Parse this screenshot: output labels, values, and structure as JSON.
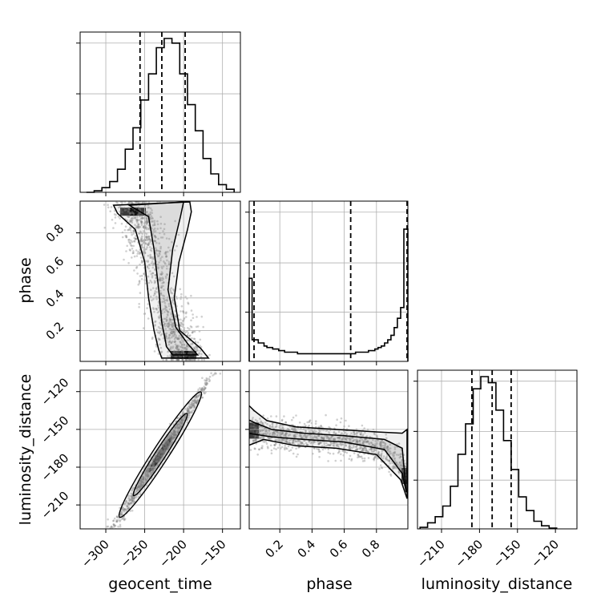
{
  "chart_data": {
    "type": "scatter",
    "title": "",
    "parameters": [
      "geocent_time",
      "phase",
      "luminosity_distance"
    ],
    "axes": {
      "geocent_time": {
        "range": [
          -333,
          -127
        ],
        "ticks": [
          -300,
          -250,
          -200,
          -150
        ],
        "tick_labels": [
          "−300",
          "−250",
          "−200",
          "−150"
        ]
      },
      "phase": {
        "range": [
          0.01,
          0.995
        ],
        "ticks": [
          0.2,
          0.4,
          0.6,
          0.8
        ],
        "tick_labels": [
          "0.2",
          "0.4",
          "0.6",
          "0.8"
        ]
      },
      "luminosity_distance": {
        "range": [
          -229,
          -103
        ],
        "ticks": [
          -210,
          -180,
          -150,
          -120
        ],
        "tick_labels": [
          "−210",
          "−180",
          "−150",
          "−120"
        ]
      }
    },
    "grid": true,
    "quantiles": {
      "geocent_time": [
        -256,
        -228,
        -198
      ],
      "phase": [
        0.04,
        0.64,
        0.99
      ],
      "luminosity_distance": [
        -186,
        -170,
        -155
      ]
    },
    "histograms": {
      "geocent_time": {
        "edges": [
          -325,
          -315,
          -305,
          -295,
          -285,
          -275,
          -265,
          -255,
          -245,
          -235,
          -225,
          -215,
          -205,
          -195,
          -185,
          -175,
          -165,
          -155,
          -145,
          -135
        ],
        "counts": [
          0,
          0.01,
          0.03,
          0.07,
          0.15,
          0.28,
          0.42,
          0.6,
          0.77,
          0.94,
          1.0,
          0.97,
          0.77,
          0.57,
          0.4,
          0.22,
          0.12,
          0.05,
          0.02
        ]
      },
      "phase": {
        "edges": [
          0.01,
          0.028,
          0.046,
          0.066,
          0.084,
          0.102,
          0.12,
          0.138,
          0.156,
          0.174,
          0.193,
          0.21,
          0.23,
          0.25,
          0.27,
          0.29,
          0.31,
          0.33,
          0.35,
          0.37,
          0.39,
          0.41,
          0.43,
          0.45,
          0.47,
          0.49,
          0.51,
          0.53,
          0.55,
          0.57,
          0.59,
          0.61,
          0.63,
          0.65,
          0.67,
          0.69,
          0.71,
          0.73,
          0.75,
          0.77,
          0.79,
          0.81,
          0.83,
          0.85,
          0.87,
          0.89,
          0.91,
          0.93,
          0.95,
          0.97,
          0.995
        ],
        "counts": [
          0.54,
          0.14,
          0.14,
          0.12,
          0.12,
          0.1,
          0.09,
          0.09,
          0.08,
          0.08,
          0.07,
          0.07,
          0.06,
          0.06,
          0.06,
          0.06,
          0.05,
          0.05,
          0.05,
          0.05,
          0.05,
          0.05,
          0.05,
          0.05,
          0.05,
          0.05,
          0.05,
          0.05,
          0.05,
          0.05,
          0.05,
          0.05,
          0.05,
          0.05,
          0.06,
          0.06,
          0.06,
          0.06,
          0.07,
          0.07,
          0.08,
          0.09,
          0.1,
          0.12,
          0.14,
          0.17,
          0.22,
          0.28,
          0.35,
          0.86
        ]
      },
      "luminosity_distance": {
        "edges": [
          -227,
          -221,
          -215,
          -209,
          -203,
          -197,
          -191,
          -185,
          -179,
          -173,
          -167,
          -161,
          -155,
          -149,
          -143,
          -137,
          -131,
          -125,
          -119
        ],
        "counts": [
          0.01,
          0.04,
          0.08,
          0.15,
          0.28,
          0.49,
          0.69,
          0.92,
          1.0,
          0.96,
          0.78,
          0.58,
          0.39,
          0.21,
          0.12,
          0.05,
          0.02,
          0.005
        ]
      }
    },
    "density_2d": [
      {
        "x": "geocent_time",
        "y": "phase",
        "relation": "inverse",
        "peaks": [
          [
            -265,
            0.93
          ],
          [
            -200,
            0.05
          ]
        ]
      },
      {
        "x": "geocent_time",
        "y": "luminosity_distance",
        "relation": "linear",
        "slope": 0.95,
        "center": [
          -230,
          -170
        ]
      },
      {
        "x": "phase",
        "y": "luminosity_distance",
        "relation": "inverse",
        "peaks": [
          [
            0.04,
            -151
          ],
          [
            0.985,
            -187
          ]
        ]
      }
    ]
  }
}
